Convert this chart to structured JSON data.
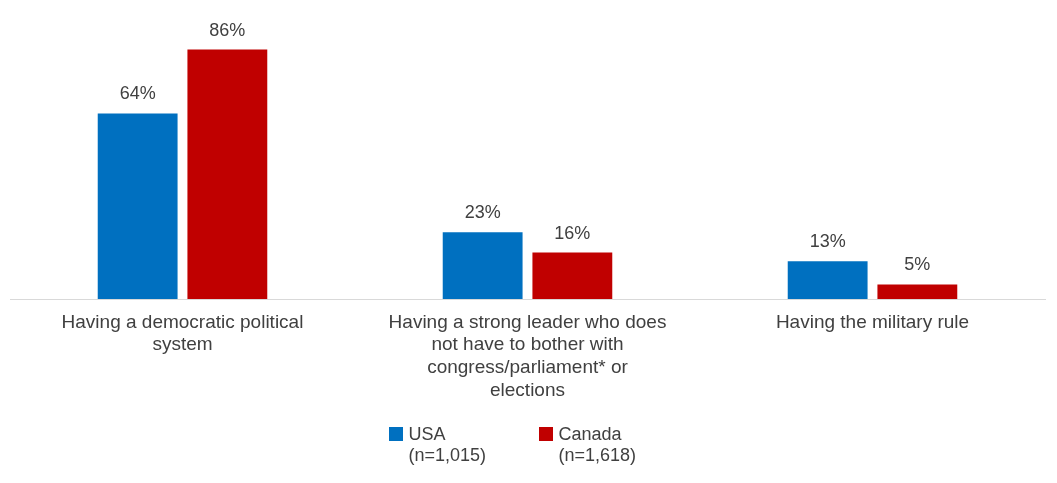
{
  "chart_data": {
    "type": "bar",
    "categories": [
      "Having a democratic political system",
      "Having a strong leader who does not have to bother with congress/parliament* or elections",
      "Having the military rule"
    ],
    "series": [
      {
        "name": "USA (n=1,015)",
        "color": "#0070c0",
        "values": [
          64,
          23,
          13
        ],
        "value_labels": [
          "64%",
          "23%",
          "13%"
        ]
      },
      {
        "name": "Canada (n=1,618)",
        "color": "#c00000",
        "values": [
          86,
          16,
          5
        ],
        "value_labels": [
          "86%",
          "16%",
          "5%"
        ]
      }
    ],
    "tick_labels": "x",
    "grid": false,
    "legend": "bottom"
  }
}
